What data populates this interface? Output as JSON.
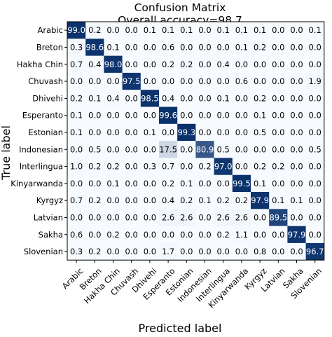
{
  "chart_data": {
    "type": "heatmap",
    "title": "Confusion Matrix",
    "subtitle": "Overall accuracy=98.7",
    "xlabel": "Predicted label",
    "ylabel": "True label",
    "x_categories": [
      "Arabic",
      "Breton",
      "Hakha Chin",
      "Chuvash",
      "Dhivehi",
      "Esperanto",
      "Estonian",
      "Indonesian",
      "Interlingua",
      "Kinyarwanda",
      "Kyrgyz",
      "Latvian",
      "Sakha",
      "Slovenian"
    ],
    "y_categories": [
      "Arabic",
      "Breton",
      "Hakha Chin",
      "Chuvash",
      "Dhivehi",
      "Esperanto",
      "Estonian",
      "Indonesian",
      "Interlingua",
      "Kinyarwanda",
      "Kyrgyz",
      "Latvian",
      "Sakha",
      "Slovenian"
    ],
    "values": [
      [
        99.0,
        0.2,
        0.0,
        0.0,
        0.1,
        0.1,
        0.1,
        0.0,
        0.1,
        0.1,
        0.1,
        0.0,
        0.0,
        0.1
      ],
      [
        0.3,
        98.6,
        0.1,
        0.0,
        0.0,
        0.6,
        0.0,
        0.0,
        0.0,
        0.1,
        0.2,
        0.0,
        0.0,
        0.0
      ],
      [
        0.7,
        0.4,
        98.0,
        0.0,
        0.0,
        0.2,
        0.2,
        0.0,
        0.4,
        0.0,
        0.0,
        0.0,
        0.0,
        0.0
      ],
      [
        0.0,
        0.0,
        0.0,
        97.5,
        0.0,
        0.0,
        0.0,
        0.0,
        0.0,
        0.6,
        0.0,
        0.0,
        0.0,
        1.9
      ],
      [
        0.2,
        0.1,
        0.4,
        0.0,
        98.5,
        0.4,
        0.0,
        0.0,
        0.1,
        0.0,
        0.2,
        0.0,
        0.0,
        0.0
      ],
      [
        0.1,
        0.0,
        0.0,
        0.0,
        0.0,
        99.6,
        0.0,
        0.0,
        0.0,
        0.0,
        0.1,
        0.0,
        0.0,
        0.0
      ],
      [
        0.1,
        0.0,
        0.0,
        0.0,
        0.1,
        0.0,
        99.3,
        0.0,
        0.0,
        0.0,
        0.5,
        0.0,
        0.0,
        0.0
      ],
      [
        0.0,
        0.5,
        0.0,
        0.0,
        0.0,
        17.5,
        0.0,
        80.9,
        0.5,
        0.0,
        0.0,
        0.0,
        0.0,
        0.5
      ],
      [
        1.0,
        0.2,
        0.2,
        0.0,
        0.3,
        0.7,
        0.0,
        0.2,
        97.0,
        0.0,
        0.2,
        0.2,
        0.0,
        0.0
      ],
      [
        0.0,
        0.0,
        0.1,
        0.0,
        0.0,
        0.2,
        0.1,
        0.0,
        0.0,
        99.5,
        0.1,
        0.0,
        0.0,
        0.0
      ],
      [
        0.7,
        0.2,
        0.0,
        0.0,
        0.0,
        0.4,
        0.2,
        0.1,
        0.2,
        0.2,
        97.9,
        0.1,
        0.1,
        0.0
      ],
      [
        0.0,
        0.0,
        0.0,
        0.0,
        0.0,
        2.6,
        2.6,
        0.0,
        2.6,
        2.6,
        0.0,
        89.5,
        0.0,
        0.0
      ],
      [
        0.6,
        0.0,
        0.2,
        0.0,
        0.0,
        0.0,
        0.0,
        0.0,
        0.2,
        1.1,
        0.0,
        0.0,
        97.9,
        0.0
      ],
      [
        0.3,
        0.2,
        0.0,
        0.0,
        0.0,
        1.7,
        0.0,
        0.0,
        0.0,
        0.0,
        0.8,
        0.0,
        0.0,
        96.7
      ]
    ],
    "value_range": [
      0,
      100
    ],
    "colormap": {
      "low": "#f7fbff",
      "high": "#08306b"
    },
    "grid": false,
    "legend": "none"
  }
}
